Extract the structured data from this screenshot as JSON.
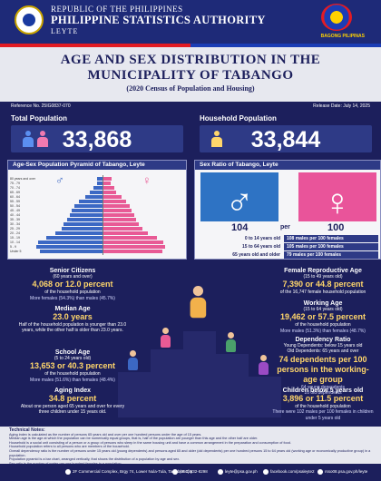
{
  "header": {
    "republic": "REPUBLIC OF THE PHILIPPINES",
    "agency": "PHILIPPINE STATISTICS AUTHORITY",
    "province": "LEYTE",
    "bp_text": "BAGONG PILIPINAS"
  },
  "title": {
    "line1": "AGE AND SEX DISTRIBUTION IN THE",
    "line2": "MUNICIPALITY OF TABANGO",
    "line3": "(2020 Census of Population and Housing)"
  },
  "meta": {
    "reference": "Reference No. 25IG0837-070",
    "release": "Release Date: July 14, 2025"
  },
  "totals": {
    "population_label": "Total Population",
    "population_value": "33,868",
    "household_label": "Household Population",
    "household_value": "33,844"
  },
  "pyramid": {
    "title": "Age-Sex Population Pyramid of Tabango, Leyte",
    "age_groups": [
      "80 years and over",
      "75 - 79",
      "70 - 74",
      "65 - 69",
      "60 - 64",
      "55 - 59",
      "50 - 54",
      "45 - 49",
      "40 - 44",
      "35 - 39",
      "30 - 34",
      "25 - 29",
      "20 - 24",
      "15 - 19",
      "10 - 14",
      "5 - 9",
      "Under 5"
    ],
    "male_pct": [
      0.5,
      0.5,
      0.8,
      1.1,
      1.5,
      2.0,
      2.4,
      2.6,
      2.8,
      3.0,
      3.3,
      3.5,
      4.0,
      4.8,
      5.5,
      5.6,
      5.3
    ],
    "female_pct": [
      0.7,
      0.6,
      0.9,
      1.1,
      1.5,
      1.9,
      2.2,
      2.4,
      2.6,
      2.8,
      3.0,
      3.3,
      3.8,
      4.5,
      5.1,
      5.2,
      5.0
    ],
    "male_color": "#3c68c4",
    "female_color": "#e85a95"
  },
  "sex_ratio": {
    "title": "Sex Ratio of Tabango, Leyte",
    "male_num": "104",
    "per": "per",
    "female_num": "100",
    "rows": [
      {
        "age": "0 to 14 years old",
        "value": "108 males per 100 females"
      },
      {
        "age": "15 to 64 years old",
        "value": "105 males per 100 females"
      },
      {
        "age": "65 years old and older",
        "value": "79 males per 100 females"
      }
    ]
  },
  "stats": {
    "senior": {
      "title": "Senior Citizens",
      "sub": "(60 years and over)",
      "value": "4,068 or 12.0 percent",
      "desc": "of the household population",
      "note": "More females (54.3%) than males (45.7%)"
    },
    "median": {
      "title": "Median Age",
      "value": "23.0 years",
      "desc": "Half of the household population is younger than 23.0 years, while the other half is older than 23.0 years."
    },
    "school": {
      "title": "School Age",
      "sub": "(5 to 24 years old)",
      "value": "13,653 or 40.3 percent",
      "desc": "of the household population",
      "note": "More males (51.6%) than females (48.4%)"
    },
    "aging": {
      "title": "Aging Index",
      "value": "34.8 percent",
      "desc": "About one person aged 65 years and over for every three children under 15 years old."
    },
    "reproductive": {
      "title": "Female Reproductive Age",
      "sub": "(15 to 49 years old)",
      "value": "7,390 or 44.8 percent",
      "desc": "of the 16,747 female household population"
    },
    "working": {
      "title": "Working Age",
      "sub": "(15 to 64 years old)",
      "value": "19,462 or 57.5 percent",
      "desc": "of the household population",
      "note": "More males (51.3%) than females (48.7%)"
    },
    "dependency": {
      "title": "Dependency Ratio",
      "l1": "Young Dependents: below 15 years old",
      "l2": "Old Dependents: 65 years and over",
      "value": "74 dependents per 100 persons in the working-age group",
      "n1": "64 young dependents",
      "n2": "10 old dependents"
    },
    "children": {
      "title": "Children below 5 years old",
      "value": "3,896 or 11.5 percent",
      "desc": "of the household population",
      "note": "There were 102 males per 100 females in children under 5 years old"
    }
  },
  "tech": {
    "title": "Technical Notes:",
    "lines": [
      "Aging index is calculated as the number of persons 65 years old and over per one hundred persons under the age of 15 years.",
      "Median age is the age at which the population can be numerically equal groups, that is, half of the population are younger than this age and the other half are older.",
      "Household is a social unit consisting of a person or a group of persons who sleep in the same housing unit and have a common arrangement in the preparation and consumption of food.",
      "Household population refers to all persons who are members of the household.",
      "Overall dependency ratio is the number of persons under 15 years old (young dependents) and persons aged 65 and older (old dependents) per one hundred persons 15 to 64 years old (working age or economically productive group) in a population.",
      "Population pyramid is a bar chart, arranged vertically, that shows the distribution of a population by age and sex.",
      "Sex ratio is the number of males per one hundred females in a population."
    ]
  },
  "footer": {
    "address": "2F Commercial Complex, Brgy 74, Lower Nula-Tula, Tacloban City",
    "phone": "(053) 832-8298",
    "email": "leyte@psa.gov.ph",
    "facebook": "facebook.com/psaleyte2",
    "web": "rsso08.psa.gov.ph/leyte"
  }
}
